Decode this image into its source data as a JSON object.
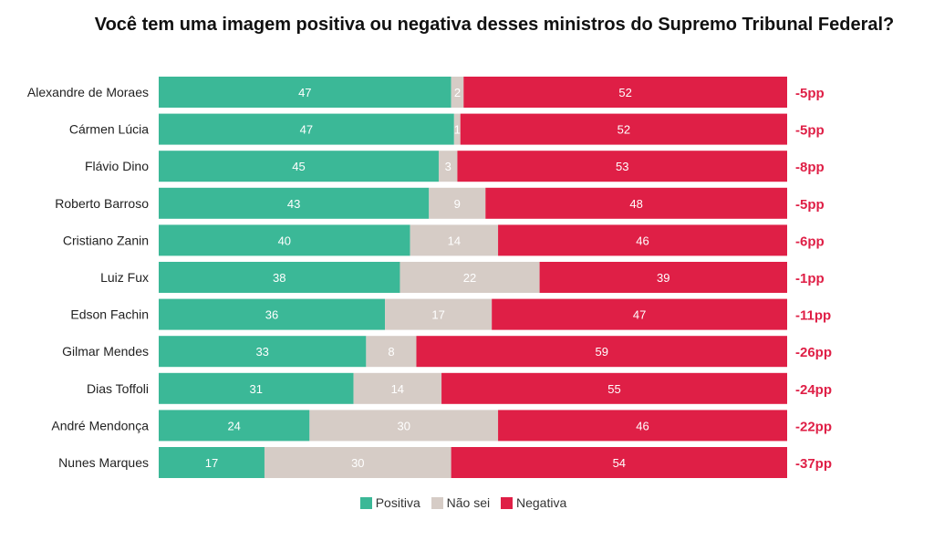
{
  "title": "Você tem uma imagem positiva ou negativa desses ministros do Supremo Tribunal Federal?",
  "colors": {
    "positiva": "#3bb897",
    "nao_sei": "#d6ccc6",
    "negativa": "#df1f46",
    "diff_text": "#df1f46",
    "label_text": "#222222"
  },
  "legend": {
    "positiva": "Positiva",
    "nao_sei": "Não sei",
    "negativa": "Negativa"
  },
  "chart_data": {
    "type": "bar",
    "orientation": "horizontal",
    "stacked": true,
    "percent_stacked": true,
    "title": "Você tem uma imagem positiva ou negativa desses ministros do Supremo Tribunal Federal?",
    "categories": [
      "Alexandre de Moraes",
      "Cármen Lúcia",
      "Flávio Dino",
      "Roberto Barroso",
      "Cristiano Zanin",
      "Luiz Fux",
      "Edson Fachin",
      "Gilmar Mendes",
      "Dias Toffoli",
      "André Mendonça",
      "Nunes Marques"
    ],
    "series": [
      {
        "name": "Positiva",
        "values": [
          47,
          47,
          45,
          43,
          40,
          38,
          36,
          33,
          31,
          24,
          17
        ]
      },
      {
        "name": "Não sei",
        "values": [
          2,
          1,
          3,
          9,
          14,
          22,
          17,
          8,
          14,
          30,
          30
        ]
      },
      {
        "name": "Negativa",
        "values": [
          52,
          52,
          53,
          48,
          46,
          39,
          47,
          59,
          55,
          46,
          54
        ]
      }
    ],
    "differences": [
      "-5pp",
      "-5pp",
      "-8pp",
      "-5pp",
      "-6pp",
      "-1pp",
      "-11pp",
      "-26pp",
      "-24pp",
      "-22pp",
      "-37pp"
    ],
    "legend_position": "bottom",
    "grid": false
  }
}
